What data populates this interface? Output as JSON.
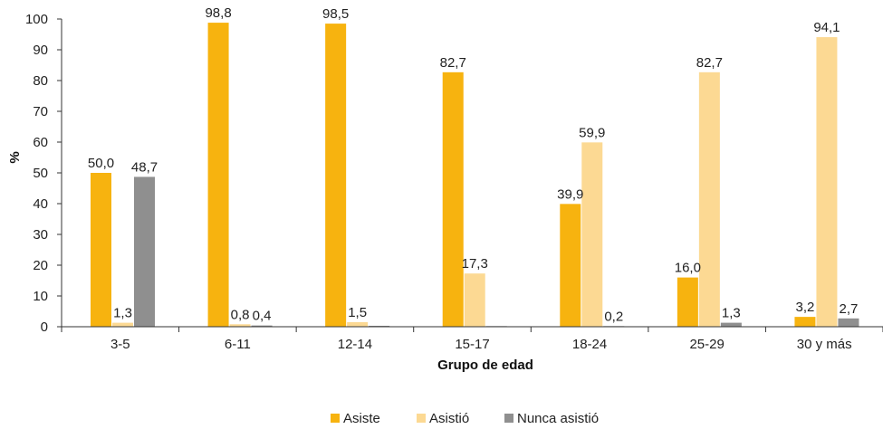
{
  "chart_data": {
    "type": "bar",
    "categories": [
      "3-5",
      "6-11",
      "12-14",
      "15-17",
      "18-24",
      "25-29",
      "30 y más"
    ],
    "series": [
      {
        "name": "Asiste",
        "color": "#F7B30F",
        "values": [
          50.0,
          98.8,
          98.5,
          82.7,
          39.9,
          16.0,
          3.2
        ],
        "labels": [
          "50,0",
          "98,8",
          "98,5",
          "82,7",
          "39,9",
          "16,0",
          "3,2"
        ]
      },
      {
        "name": "Asistió",
        "color": "#FCD993",
        "values": [
          1.3,
          0.8,
          1.5,
          17.3,
          59.9,
          82.7,
          94.1
        ],
        "labels": [
          "1,3",
          "0,8",
          "1,5",
          "17,3",
          "59,9",
          "82,7",
          "94,1"
        ]
      },
      {
        "name": "Nunca asistió",
        "color": "#8F8F8F",
        "values": [
          48.7,
          0.4,
          0.3,
          0.2,
          0.2,
          1.3,
          2.7
        ],
        "labels": [
          "48,7",
          "0,4",
          "",
          "",
          "0,2",
          "1,3",
          "2,7"
        ]
      }
    ],
    "xlabel": "Grupo de edad",
    "ylabel": "%",
    "ylim": [
      0,
      100
    ],
    "yticks": [
      0,
      10,
      20,
      30,
      40,
      50,
      60,
      70,
      80,
      90,
      100
    ],
    "grid": false,
    "legend_position": "bottom-center"
  }
}
